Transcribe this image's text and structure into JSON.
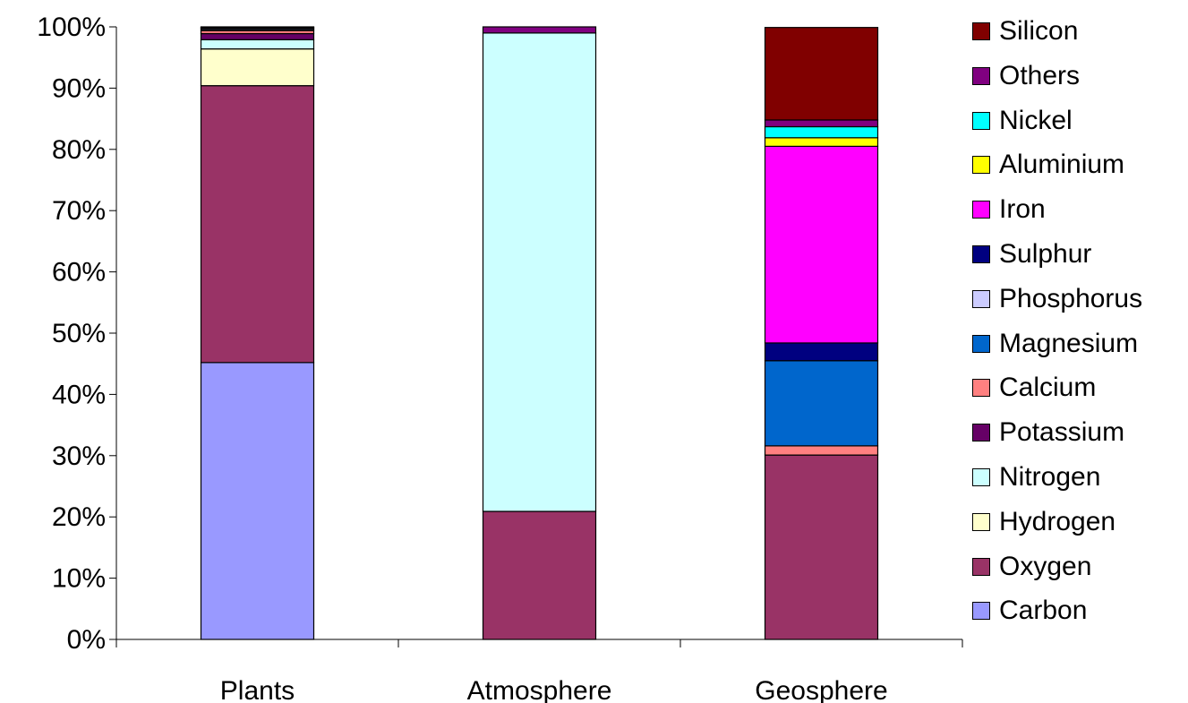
{
  "chart_data": {
    "type": "bar",
    "stacked": true,
    "percent": true,
    "title": "",
    "xlabel": "",
    "ylabel": "",
    "ylim": [
      0,
      100
    ],
    "yticks": [
      0,
      10,
      20,
      30,
      40,
      50,
      60,
      70,
      80,
      90,
      100
    ],
    "ytick_labels": [
      "0%",
      "10%",
      "20%",
      "30%",
      "40%",
      "50%",
      "60%",
      "70%",
      "80%",
      "90%",
      "100%"
    ],
    "categories": [
      "Plants",
      "Atmosphere",
      "Geosphere"
    ],
    "grid": false,
    "legend_position": "right",
    "series": [
      {
        "name": "Carbon",
        "color": "#9999ff",
        "values": [
          45.2,
          0,
          0
        ]
      },
      {
        "name": "Oxygen",
        "color": "#993366",
        "values": [
          45.2,
          20.9,
          30.1
        ]
      },
      {
        "name": "Hydrogen",
        "color": "#ffffcc",
        "values": [
          6.0,
          0,
          0
        ]
      },
      {
        "name": "Nitrogen",
        "color": "#ccffff",
        "values": [
          1.5,
          78.1,
          0
        ]
      },
      {
        "name": "Potassium",
        "color": "#660066",
        "values": [
          1.0,
          0,
          0
        ]
      },
      {
        "name": "Calcium",
        "color": "#ff8080",
        "values": [
          0.5,
          0,
          1.5
        ]
      },
      {
        "name": "Magnesium",
        "color": "#0066cc",
        "values": [
          0.2,
          0,
          13.9
        ]
      },
      {
        "name": "Phosphorus",
        "color": "#ccccff",
        "values": [
          0.2,
          0,
          0
        ]
      },
      {
        "name": "Sulphur",
        "color": "#000080",
        "values": [
          0.1,
          0,
          2.9
        ]
      },
      {
        "name": "Iron",
        "color": "#ff00ff",
        "values": [
          0,
          0,
          32.1
        ]
      },
      {
        "name": "Aluminium",
        "color": "#ffff00",
        "values": [
          0,
          0,
          1.4
        ]
      },
      {
        "name": "Nickel",
        "color": "#00ffff",
        "values": [
          0,
          0,
          1.8
        ]
      },
      {
        "name": "Others",
        "color": "#800080",
        "values": [
          0.1,
          1.0,
          1.1
        ]
      },
      {
        "name": "Silicon",
        "color": "#800000",
        "values": [
          0,
          0,
          15.1
        ]
      }
    ]
  }
}
